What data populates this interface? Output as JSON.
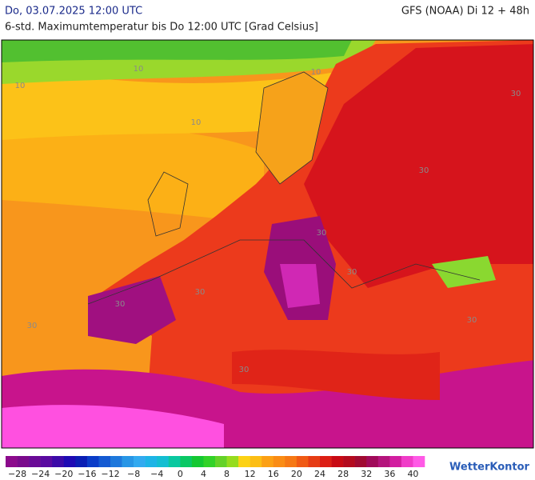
{
  "header": {
    "date": "Do, 03.07.2025 12:00 UTC",
    "model": "GFS (NOAA) Di 12 + 48h",
    "title": "6-std. Maximumtemperatur bis Do 12:00 UTC [Grad Celsius]"
  },
  "map": {
    "isotherm_labels": [
      "10",
      "10",
      "10",
      "10",
      "30",
      "30",
      "30",
      "30",
      "30",
      "30",
      "30",
      "30",
      "30"
    ]
  },
  "colorbar": {
    "colors": [
      "#8c0a8c",
      "#7a0a8c",
      "#6a0a96",
      "#5a0aa0",
      "#3c0aa8",
      "#1e0ab4",
      "#0a1eb4",
      "#0a3cc8",
      "#145ad2",
      "#1e78dc",
      "#2896e6",
      "#32aaf0",
      "#1eb4e6",
      "#14bed2",
      "#0ac8a0",
      "#0ac864",
      "#14c832",
      "#32d228",
      "#64d228",
      "#96dc1e",
      "#fcd214",
      "#fcbe14",
      "#fca014",
      "#fa8c14",
      "#f67814",
      "#f05a14",
      "#e63c14",
      "#dc1e14",
      "#c80a14",
      "#b40a1e",
      "#a00a32",
      "#a00a5a",
      "#b4147c",
      "#d21ea0",
      "#f03cc8",
      "#ff5ae6"
    ],
    "labels": [
      "−28",
      "−24",
      "−20",
      "−16",
      "−12",
      "−8",
      "−4",
      "0",
      "4",
      "8",
      "12",
      "16",
      "20",
      "24",
      "28",
      "32",
      "36",
      "40"
    ]
  },
  "footer": {
    "logo": "WetterKontor"
  }
}
